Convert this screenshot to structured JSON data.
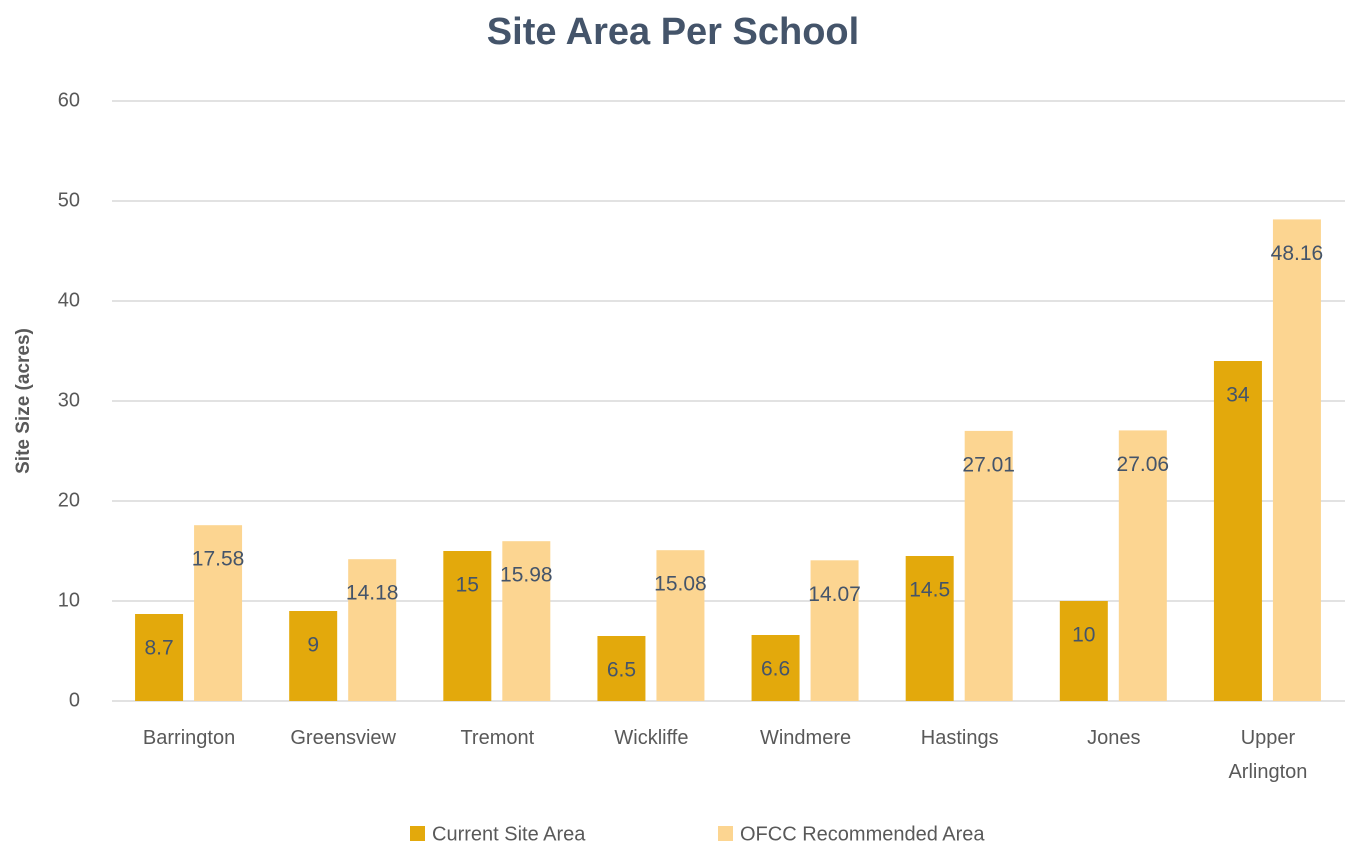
{
  "chart_data": {
    "type": "bar",
    "title": "Site Area Per School",
    "y_label": "Site Size (acres)",
    "categories": [
      "Barrington",
      "Greensview",
      "Tremont",
      "Wickliffe",
      "Windmere",
      "Hastings",
      "Jones",
      "Upper Arlington"
    ],
    "series": [
      {
        "name": "Current Site Area",
        "color": "#e3a90c",
        "values": [
          8.7,
          9,
          15,
          6.5,
          6.6,
          14.5,
          10,
          34
        ]
      },
      {
        "name": "OFCC Recommended Area",
        "color": "#fcd591",
        "values": [
          17.58,
          14.18,
          15.98,
          15.08,
          14.07,
          27.01,
          27.06,
          48.16
        ]
      }
    ],
    "ylim": [
      0,
      60
    ],
    "yticks": [
      0,
      10,
      20,
      30,
      40,
      50,
      60
    ],
    "grid": true,
    "legend": "bottom"
  }
}
